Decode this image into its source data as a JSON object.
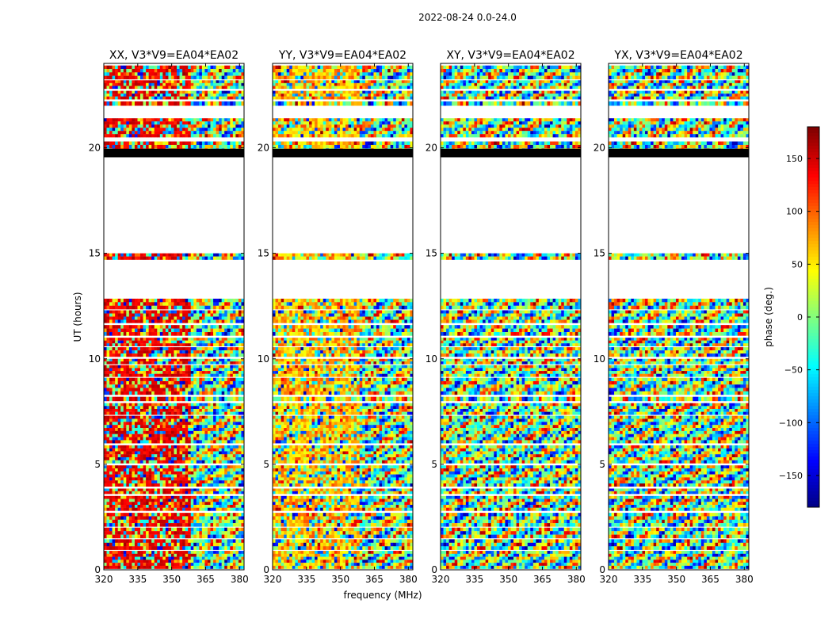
{
  "figure": {
    "suptitle": "2022-08-24 0.0-24.0",
    "xlabel": "frequency (MHz)",
    "ylabel": "UT (hours)",
    "colorbar_label": "phase (deg.)"
  },
  "chart_data": {
    "type": "heatmap",
    "suptitle": "2022-08-24 0.0-24.0",
    "xlabel": "frequency (MHz)",
    "ylabel": "UT (hours)",
    "xlim": [
      320,
      382
    ],
    "ylim": [
      0,
      24
    ],
    "xticks": [
      320,
      335,
      350,
      365,
      380
    ],
    "yticks": [
      0,
      5,
      10,
      15,
      20
    ],
    "colormap": "jet",
    "colorbar": {
      "label": "phase (deg.)",
      "range": [
        -180,
        180
      ],
      "ticks": [
        150,
        100,
        50,
        0,
        -50,
        -100,
        -150
      ],
      "tick_labels": [
        "150",
        "100",
        "50",
        "0",
        "−50",
        "−100",
        "−150"
      ]
    },
    "panels": [
      {
        "title": "XX, V3*V9=EA04*EA02"
      },
      {
        "title": "YY, V3*V9=EA04*EA02"
      },
      {
        "title": "XY, V3*V9=EA04*EA02"
      },
      {
        "title": "YX, V3*V9=EA04*EA02"
      }
    ]
  }
}
